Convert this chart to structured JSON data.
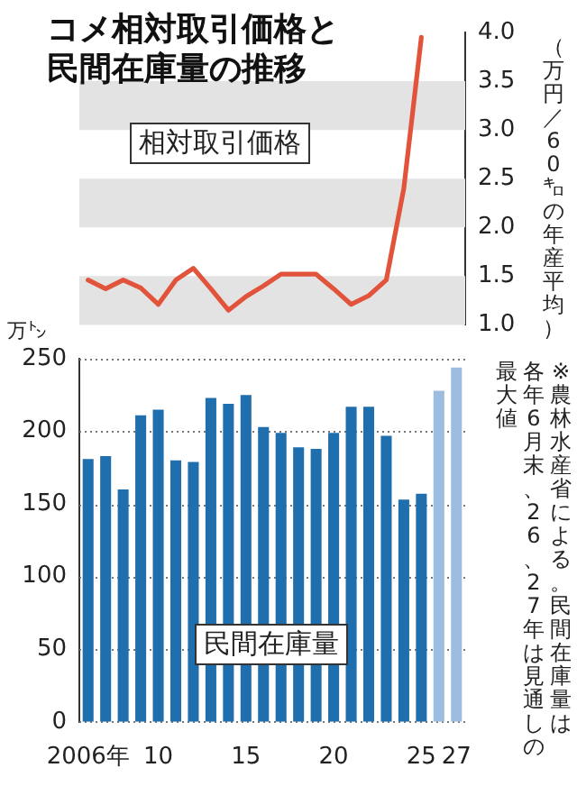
{
  "chart_data": [
    {
      "type": "line",
      "title": "コメ相対取引価格と民間在庫量の推移",
      "ylabel": "（万円／60㌔の年産平均）",
      "categories": [
        null,
        null,
        null,
        null,
        null,
        null,
        null,
        null,
        null,
        null,
        null,
        null,
        null,
        null,
        null,
        null,
        null,
        null,
        null,
        null,
        null,
        null
      ],
      "series": [
        {
          "name": "相対取引価格",
          "color": "#e2533b",
          "values": [
            1.46,
            1.37,
            1.46,
            1.38,
            1.21,
            1.46,
            1.58,
            1.37,
            1.15,
            1.29,
            1.4,
            1.52,
            1.52,
            1.52,
            1.37,
            1.21,
            1.3,
            1.46,
            2.4,
            3.95,
            null,
            null
          ]
        }
      ],
      "ylim": [
        1,
        4
      ],
      "yticks": [
        {
          "value": 1,
          "label": "1.0"
        },
        {
          "value": 1.5,
          "label": "1.5"
        },
        {
          "value": 2,
          "label": "2.0"
        },
        {
          "value": 2.5,
          "label": "2.5"
        },
        {
          "value": 3,
          "label": "3.0"
        },
        {
          "value": 3.5,
          "label": "3.5"
        },
        {
          "value": 4,
          "label": "4.0"
        }
      ],
      "tick_labels": "y",
      "bands": [
        {
          "axis": "y",
          "from": 1,
          "to": 1.5,
          "color": "#e3e3e3"
        },
        {
          "axis": "y",
          "from": 2,
          "to": 2.5,
          "color": "#e3e3e3"
        },
        {
          "axis": "y",
          "from": 3,
          "to": 3.5,
          "color": "#e3e3e3"
        }
      ]
    },
    {
      "type": "bar",
      "ylabel": "万㌧",
      "categories": [
        "2006年",
        null,
        null,
        null,
        "10",
        null,
        null,
        null,
        null,
        "15",
        null,
        null,
        null,
        null,
        "20",
        null,
        null,
        null,
        null,
        "25",
        null,
        "27"
      ],
      "series": [
        {
          "name": "民間在庫量",
          "colors": [
            "#1f6fae",
            "#1f6fae",
            "#1f6fae",
            "#1f6fae",
            "#1f6fae",
            "#1f6fae",
            "#1f6fae",
            "#1f6fae",
            "#1f6fae",
            "#1f6fae",
            "#1f6fae",
            "#1f6fae",
            "#1f6fae",
            "#1f6fae",
            "#1f6fae",
            "#1f6fae",
            "#1f6fae",
            "#1f6fae",
            "#1f6fae",
            "#1f6fae",
            "#9dbde0",
            "#9dbde0"
          ],
          "values": [
            181,
            183,
            160,
            211,
            215,
            180,
            179,
            223,
            219,
            225,
            203,
            199,
            189,
            188,
            199,
            217,
            217,
            197,
            153,
            157,
            228,
            244
          ]
        }
      ],
      "ylim": [
        0,
        250
      ],
      "yticks": [
        0,
        50,
        100,
        150,
        200,
        250
      ],
      "grid": "y",
      "annotations": [
        "※農林水産省による。民間在庫量は",
        "各年6月末、26、27年は見通しの",
        "最大値"
      ]
    }
  ]
}
